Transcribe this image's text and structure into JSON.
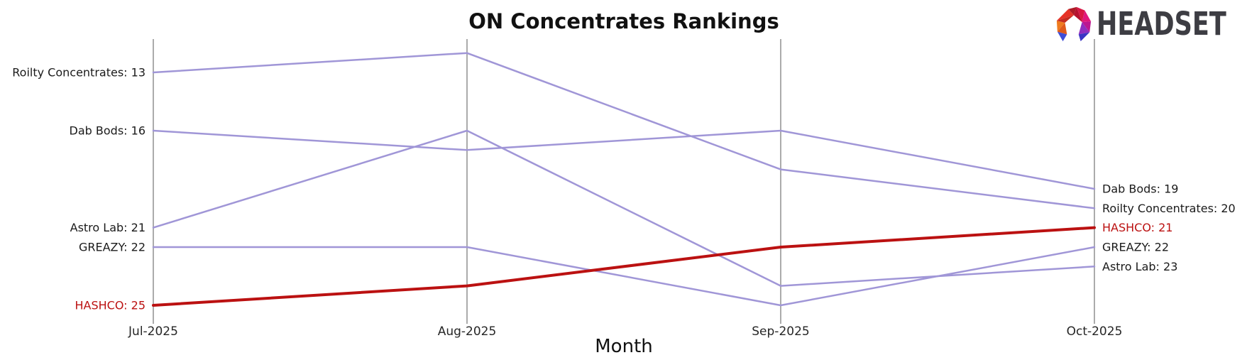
{
  "logo": {
    "text": "HEADSET",
    "icon": "headset-faceted-arch"
  },
  "chart_data": {
    "type": "line",
    "subtype": "bump-ranking",
    "title": "ON Concentrates Rankings",
    "xlabel": "Month",
    "x": [
      "Jul-2025",
      "Aug-2025",
      "Sep-2025",
      "Oct-2025"
    ],
    "series": [
      {
        "name": "Roilty Concentrates",
        "values": [
          13,
          12,
          18,
          20
        ],
        "highlight": false
      },
      {
        "name": "Dab Bods",
        "values": [
          16,
          17,
          16,
          19
        ],
        "highlight": false
      },
      {
        "name": "Astro Lab",
        "values": [
          21,
          16,
          24,
          23
        ],
        "highlight": false
      },
      {
        "name": "GREAZY",
        "values": [
          22,
          22,
          25,
          22
        ],
        "highlight": false
      },
      {
        "name": "HASHCO",
        "values": [
          25,
          24,
          22,
          21
        ],
        "highlight": true
      }
    ],
    "left_labels": [
      "Roilty Concentrates: 13",
      "Dab Bods: 16",
      "Astro Lab: 21",
      "GREAZY: 22",
      "HASHCO: 25"
    ],
    "right_labels": [
      "Dab Bods: 19",
      "Roilty Concentrates: 20",
      "HASHCO: 21",
      "GREAZY: 22",
      "Astro Lab: 23"
    ],
    "ylim": [
      12,
      25
    ],
    "y_inverted": true,
    "grid": "vertical-month-axes-only",
    "legend": "none",
    "colors": {
      "line": "#a096d7",
      "highlight": "#bb1111",
      "axis": "#ababab",
      "label": "#1a1a1a",
      "tick_label": "#262626",
      "logo_text": "#3d3d43"
    }
  }
}
